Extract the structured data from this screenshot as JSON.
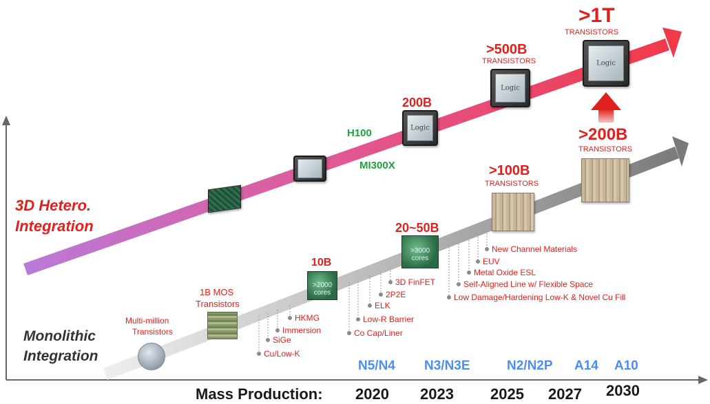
{
  "labels": {
    "hetero_line1": "3D Hetero.",
    "hetero_line2": "Integration",
    "mono_line1": "Monolithic",
    "mono_line2": "Integration",
    "mass_production": "Mass Production:"
  },
  "years": [
    "2020",
    "2023",
    "2025",
    "2027",
    "2030"
  ],
  "nodes": [
    "N5/N4",
    "N3/N3E",
    "N2/N2P",
    "A14",
    "A10"
  ],
  "hetero_milestones": {
    "h100": "H100",
    "mi300x": "MI300X",
    "b200": "200B",
    "b500": ">500B",
    "b500_sub": "TRANSISTORS",
    "t1": ">1T",
    "t1_sub": "TRANSISTORS"
  },
  "mono_milestones": {
    "multi_million_1": "Multi-million",
    "multi_million_2": "Transistors",
    "mos_1": "1B MOS",
    "mos_2": "Transistors",
    "b10": "10B",
    "b20_50": "20~50B",
    "b100": ">100B",
    "b100_sub": "TRANSISTORS",
    "b200": ">200B",
    "b200_sub": "TRANSISTORS"
  },
  "chip_text": {
    "cores_2000": ">2000 cores",
    "cores_3000": ">3000 cores",
    "logic": "Logic"
  },
  "process_tech": [
    "Cu/Low-K",
    "SiGe",
    "Immersion",
    "HKMG",
    "Co Cap/Liner",
    "Low-R Barrier",
    "ELK",
    "2P2E",
    "3D FinFET",
    "Low Damage/Hardening Low-K & Novel Cu Fill",
    "Self-Aligned Line w/ Flexible Space",
    "Metal Oxide ESL",
    "EUV",
    "New Channel Materials"
  ],
  "colors": {
    "hetero_arrow_start": "#b97ad8",
    "hetero_arrow_end": "#f03a4a",
    "mono_arrow": "#8a8a8a",
    "node_blue": "#4a8ff0",
    "accent_red": "#e0201c",
    "accent_green": "#1fa33a"
  }
}
